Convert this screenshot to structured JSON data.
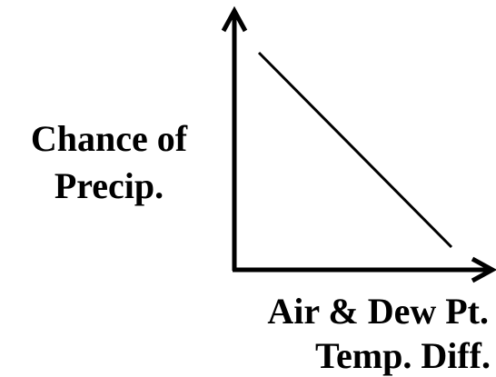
{
  "y_axis_label": {
    "lines": [
      "Chance of",
      "Precip."
    ]
  },
  "x_axis_label": {
    "lines": [
      "Air & Dew Pt.",
      "Temp. Diff."
    ]
  }
}
